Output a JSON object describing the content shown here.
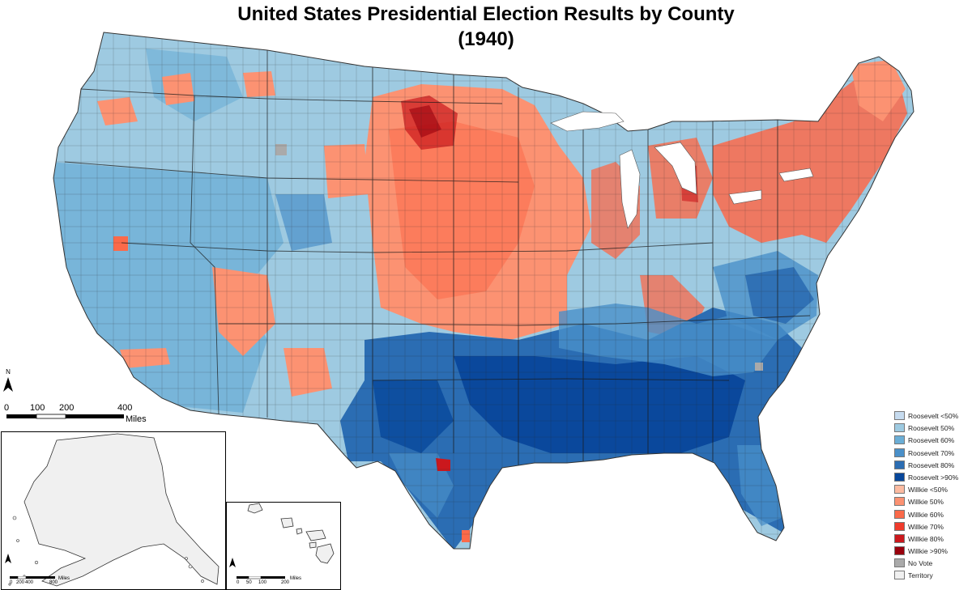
{
  "title": {
    "line1": "United States Presidential Election Results by County",
    "line2": "(1940)"
  },
  "north_arrow": {
    "label": "N"
  },
  "scale_bar": {
    "ticks": [
      "0",
      "100",
      "200",
      "400"
    ],
    "unit": "Miles"
  },
  "alaska_scale": {
    "ticks": [
      "0",
      "200",
      "400",
      "800"
    ],
    "unit": "Miles"
  },
  "hawaii_scale": {
    "ticks": [
      "0",
      "50",
      "100",
      "200"
    ],
    "unit": "Miles"
  },
  "legend": [
    {
      "label": "Roosevelt <50%",
      "color": "#c6dbef"
    },
    {
      "label": "Roosevelt 50%",
      "color": "#9ecae1"
    },
    {
      "label": "Roosevelt 60%",
      "color": "#6baed6"
    },
    {
      "label": "Roosevelt 70%",
      "color": "#4a90c9"
    },
    {
      "label": "Roosevelt 80%",
      "color": "#2b6db3"
    },
    {
      "label": "Roosevelt >90%",
      "color": "#08479b"
    },
    {
      "label": "Willkie <50%",
      "color": "#fcbba1"
    },
    {
      "label": "Willkie 50%",
      "color": "#fc9272"
    },
    {
      "label": "Willkie 60%",
      "color": "#fb6a4a"
    },
    {
      "label": "Willkie 70%",
      "color": "#ef3b2c"
    },
    {
      "label": "Willkie 80%",
      "color": "#cb181d"
    },
    {
      "label": "Willkie >90%",
      "color": "#99000d"
    },
    {
      "label": "No Vote",
      "color": "#aaaaaa"
    },
    {
      "label": "Territory",
      "color": "#f0f0f0"
    }
  ]
}
